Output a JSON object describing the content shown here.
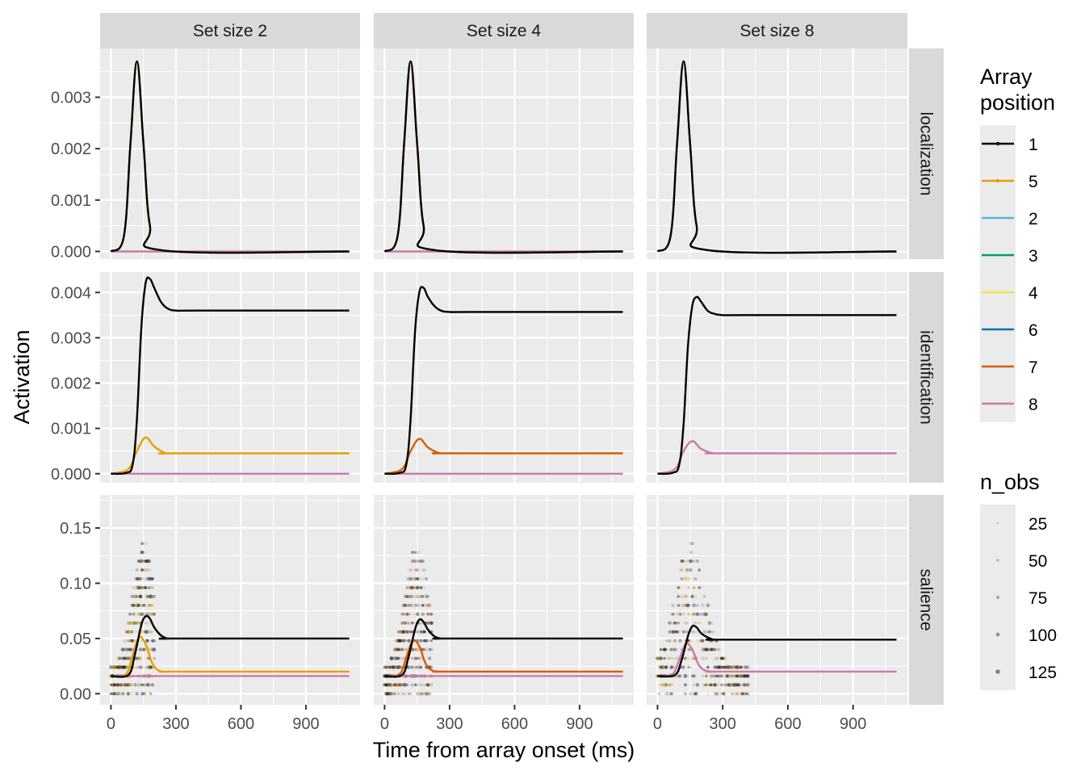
{
  "chart_data": {
    "type": "line",
    "xlabel": "Time from array onset (ms)",
    "ylabel": "Activation",
    "xlim": [
      -50,
      1150
    ],
    "x_ticks": [
      0,
      300,
      600,
      900
    ],
    "columns": [
      "Set size 2",
      "Set size 4",
      "Set size 8"
    ],
    "rows": [
      {
        "name": "localization",
        "ylim": [
          -0.00015,
          0.00395
        ],
        "ticks": [
          0.0,
          0.001,
          0.002,
          0.003
        ],
        "tick_labels": [
          "0.000",
          "0.001",
          "0.002",
          "0.003"
        ]
      },
      {
        "name": "identification",
        "ylim": [
          -0.0002,
          0.00445
        ],
        "ticks": [
          0.0,
          0.001,
          0.002,
          0.003,
          0.004
        ],
        "tick_labels": [
          "0.000",
          "0.001",
          "0.002",
          "0.003",
          "0.004"
        ]
      },
      {
        "name": "salience",
        "ylim": [
          -0.01,
          0.18
        ],
        "ticks": [
          0.0,
          0.05,
          0.1,
          0.15
        ],
        "tick_labels": [
          "0.00",
          "0.05",
          "0.10",
          "0.15"
        ]
      }
    ],
    "series_colors": {
      "1": "#000000",
      "2": "#56B4E9",
      "3": "#009E73",
      "4": "#F0E442",
      "5": "#E69F00",
      "6": "#0072B2",
      "7": "#D55E00",
      "8": "#CC79A7"
    },
    "panels": [
      {
        "row": "localization",
        "column": "Set size 2",
        "series": [
          {
            "position": "1",
            "x": [
              0,
              60,
              90,
              120,
              150,
              180,
              240,
              1100
            ],
            "y": [
              0,
              0.0003,
              0.0021,
              0.0037,
              0.0021,
              0.0005,
              2e-05,
              0
            ]
          },
          {
            "position": "5",
            "x": [
              0,
              60,
              90,
              120,
              150,
              180,
              240,
              1100
            ],
            "y": [
              0,
              0.0003,
              0.0021,
              0.0037,
              0.0021,
              0.0005,
              2e-05,
              0
            ]
          },
          {
            "position": "8",
            "x": [
              0,
              1100
            ],
            "y": [
              0,
              0
            ]
          }
        ]
      },
      {
        "row": "localization",
        "column": "Set size 4",
        "series": [
          {
            "position": "1",
            "x": [
              0,
              60,
              90,
              120,
              150,
              180,
              240,
              1100
            ],
            "y": [
              0,
              0.0003,
              0.0021,
              0.0037,
              0.0021,
              0.0005,
              2e-05,
              0
            ]
          },
          {
            "position": "7",
            "x": [
              0,
              60,
              90,
              120,
              150,
              180,
              240,
              1100
            ],
            "y": [
              0,
              0.0003,
              0.0021,
              0.0037,
              0.0021,
              0.0005,
              2e-05,
              0
            ]
          },
          {
            "position": "8",
            "x": [
              0,
              1100
            ],
            "y": [
              0,
              0
            ]
          }
        ]
      },
      {
        "row": "localization",
        "column": "Set size 8",
        "series": [
          {
            "position": "1",
            "x": [
              0,
              60,
              90,
              120,
              150,
              180,
              240,
              1100
            ],
            "y": [
              0,
              0.0003,
              0.0021,
              0.0037,
              0.0021,
              0.0005,
              2e-05,
              0
            ]
          },
          {
            "position": "8",
            "x": [
              0,
              60,
              90,
              120,
              150,
              180,
              240,
              1100
            ],
            "y": [
              0,
              0.0003,
              0.0021,
              0.0037,
              0.0021,
              0.0005,
              2e-05,
              0
            ]
          }
        ]
      },
      {
        "row": "identification",
        "column": "Set size 2",
        "series": [
          {
            "position": "1",
            "x": [
              0,
              70,
              100,
              120,
              140,
              160,
              180,
              200,
              230,
              260,
              300,
              400,
              1100
            ],
            "y": [
              0,
              2e-05,
              0.0002,
              0.0012,
              0.0032,
              0.0042,
              0.0043,
              0.0041,
              0.0038,
              0.00365,
              0.0036,
              0.0036,
              0.0036
            ]
          },
          {
            "position": "5",
            "x": [
              0,
              80,
              120,
              160,
              200,
              250,
              300,
              1100
            ],
            "y": [
              0,
              0.0001,
              0.0005,
              0.0008,
              0.0006,
              0.00046,
              0.00045,
              0.00045
            ]
          },
          {
            "position": "8",
            "x": [
              0,
              1100
            ],
            "y": [
              0,
              0
            ]
          }
        ]
      },
      {
        "row": "identification",
        "column": "Set size 4",
        "series": [
          {
            "position": "1",
            "x": [
              0,
              70,
              100,
              120,
              140,
              160,
              180,
              200,
              230,
              260,
              300,
              400,
              1100
            ],
            "y": [
              0,
              2e-05,
              0.0002,
              0.0012,
              0.0031,
              0.004,
              0.0041,
              0.0039,
              0.0037,
              0.0036,
              0.00357,
              0.00357,
              0.00357
            ]
          },
          {
            "position": "7",
            "x": [
              0,
              80,
              120,
              160,
              200,
              250,
              300,
              1100
            ],
            "y": [
              0,
              0.0001,
              0.0005,
              0.00077,
              0.00058,
              0.00046,
              0.00045,
              0.00045
            ]
          },
          {
            "position": "8",
            "x": [
              0,
              1100
            ],
            "y": [
              0,
              0
            ]
          }
        ]
      },
      {
        "row": "identification",
        "column": "Set size 8",
        "series": [
          {
            "position": "1",
            "x": [
              0,
              70,
              100,
              120,
              140,
              160,
              180,
              200,
              230,
              260,
              300,
              400,
              1100
            ],
            "y": [
              0,
              2e-05,
              0.0002,
              0.0011,
              0.0028,
              0.0037,
              0.0039,
              0.0038,
              0.0036,
              0.00353,
              0.0035,
              0.0035,
              0.0035
            ]
          },
          {
            "position": "8",
            "x": [
              0,
              80,
              120,
              160,
              200,
              250,
              300,
              1100
            ],
            "y": [
              0,
              0.0001,
              0.0005,
              0.00072,
              0.00055,
              0.00046,
              0.00045,
              0.00045
            ]
          }
        ]
      },
      {
        "row": "salience",
        "column": "Set size 2",
        "series": [
          {
            "position": "1",
            "x": [
              0,
              80,
              110,
              140,
              160,
              180,
              200,
              230,
              260,
              300,
              1100
            ],
            "y": [
              0.016,
              0.017,
              0.035,
              0.062,
              0.07,
              0.068,
              0.06,
              0.053,
              0.05,
              0.05,
              0.05
            ]
          },
          {
            "position": "5",
            "x": [
              0,
              70,
              100,
              130,
              160,
              190,
              220,
              260,
              300,
              1100
            ],
            "y": [
              0.016,
              0.018,
              0.035,
              0.051,
              0.045,
              0.028,
              0.021,
              0.02,
              0.02,
              0.02
            ]
          },
          {
            "position": "8",
            "x": [
              0,
              1100
            ],
            "y": [
              0.016,
              0.016
            ]
          }
        ]
      },
      {
        "row": "salience",
        "column": "Set size 4",
        "series": [
          {
            "position": "1",
            "x": [
              0,
              80,
              110,
              140,
              160,
              180,
              200,
              230,
              260,
              300,
              1100
            ],
            "y": [
              0.016,
              0.017,
              0.033,
              0.058,
              0.067,
              0.065,
              0.058,
              0.052,
              0.05,
              0.05,
              0.05
            ]
          },
          {
            "position": "7",
            "x": [
              0,
              70,
              100,
              130,
              160,
              190,
              220,
              260,
              300,
              1100
            ],
            "y": [
              0.016,
              0.018,
              0.033,
              0.048,
              0.043,
              0.027,
              0.021,
              0.02,
              0.02,
              0.02
            ]
          },
          {
            "position": "8",
            "x": [
              0,
              1100
            ],
            "y": [
              0.016,
              0.016
            ]
          }
        ]
      },
      {
        "row": "salience",
        "column": "Set size 8",
        "series": [
          {
            "position": "1",
            "x": [
              0,
              80,
              110,
              140,
              160,
              180,
              200,
              230,
              260,
              300,
              1100
            ],
            "y": [
              0.016,
              0.017,
              0.03,
              0.052,
              0.061,
              0.06,
              0.055,
              0.051,
              0.049,
              0.049,
              0.049
            ]
          },
          {
            "position": "8",
            "x": [
              0,
              70,
              100,
              130,
              160,
              190,
              220,
              260,
              300,
              1100
            ],
            "y": [
              0.016,
              0.018,
              0.031,
              0.045,
              0.04,
              0.026,
              0.021,
              0.02,
              0.02,
              0.02
            ]
          }
        ]
      }
    ],
    "legend": {
      "title_line1": "Array",
      "title_line2": "position",
      "items": [
        {
          "label": "1",
          "color": "#000000",
          "dots": true
        },
        {
          "label": "5",
          "color": "#E69F00",
          "dots": true
        },
        {
          "label": "2",
          "color": "#56B4E9"
        },
        {
          "label": "3",
          "color": "#009E73"
        },
        {
          "label": "4",
          "color": "#F0E442"
        },
        {
          "label": "6",
          "color": "#0072B2"
        },
        {
          "label": "7",
          "color": "#D55E00"
        },
        {
          "label": "8",
          "color": "#CC79A7"
        }
      ]
    },
    "size_legend": {
      "title": "n_obs",
      "items": [
        {
          "label": "25",
          "value": 25
        },
        {
          "label": "50",
          "value": 50
        },
        {
          "label": "75",
          "value": 75
        },
        {
          "label": "100",
          "value": 100
        },
        {
          "label": "125",
          "value": 125
        }
      ]
    }
  }
}
